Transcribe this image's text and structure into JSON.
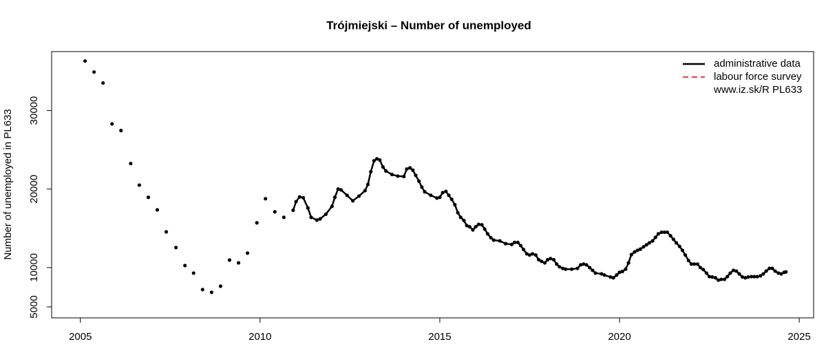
{
  "chart_data": {
    "type": "line",
    "title": "Trójmiejski – Number of unemployed",
    "y_label": "Number of unemployed in PL633",
    "xlim": [
      2004.2,
      2025.4
    ],
    "ylim": [
      3600,
      37500
    ],
    "xticks": [
      2005,
      2010,
      2015,
      2020,
      2025
    ],
    "yticks": [
      5000,
      10000,
      20000,
      30000
    ],
    "legend_position": "topright",
    "note": "www.iz.sk/R PL633",
    "series": [
      {
        "name": "administrative data",
        "color": "#000000",
        "dash": "solid",
        "x": [
          2005.13,
          null,
          2005.38,
          null,
          2005.63,
          null,
          2005.88,
          null,
          2006.13,
          null,
          2006.4,
          null,
          2006.64,
          null,
          2006.89,
          null,
          2007.14,
          null,
          2007.39,
          null,
          2007.66,
          null,
          2007.91,
          null,
          2008.15,
          null,
          2008.4,
          null,
          2008.65,
          null,
          2008.9,
          null,
          2009.15,
          null,
          2009.4,
          null,
          2009.65,
          null,
          2009.91,
          null,
          2010.15,
          null,
          2010.41,
          null,
          2010.66,
          null,
          2010.92,
          2011.0,
          2011.1,
          2011.2,
          2011.33,
          2011.42,
          2011.58,
          2011.67,
          2011.83,
          2012.0,
          2012.08,
          2012.17,
          2012.25,
          2012.42,
          2012.58,
          2012.75,
          2012.92,
          2013.0,
          2013.08,
          2013.17,
          2013.25,
          2013.33,
          2013.42,
          2013.5,
          2013.67,
          2013.83,
          2014.0,
          2014.08,
          2014.17,
          2014.25,
          2014.33,
          2014.42,
          2014.5,
          2014.58,
          2014.75,
          2014.92,
          2015.0,
          2015.08,
          2015.17,
          2015.25,
          2015.33,
          2015.42,
          2015.5,
          2015.58,
          2015.67,
          2015.75,
          2015.83,
          2015.92,
          2016.0,
          2016.08,
          2016.17,
          2016.25,
          2016.33,
          2016.42,
          2016.5,
          2016.67,
          2016.83,
          2017.0,
          2017.08,
          2017.17,
          2017.25,
          2017.33,
          2017.42,
          2017.5,
          2017.58,
          2017.67,
          2017.75,
          2017.83,
          2017.92,
          2018.0,
          2018.08,
          2018.17,
          2018.25,
          2018.33,
          2018.42,
          2018.5,
          2018.67,
          2018.83,
          2018.92,
          2019.0,
          2019.08,
          2019.17,
          2019.25,
          2019.33,
          2019.5,
          2019.58,
          2019.75,
          2019.83,
          2019.92,
          2020.0,
          2020.08,
          2020.17,
          2020.25,
          2020.33,
          2020.42,
          2020.5,
          2020.58,
          2020.67,
          2020.75,
          2020.83,
          2020.92,
          2021.0,
          2021.08,
          2021.17,
          2021.25,
          2021.33,
          2021.42,
          2021.5,
          2021.58,
          2021.67,
          2021.75,
          2021.83,
          2021.92,
          2022.0,
          2022.08,
          2022.17,
          2022.25,
          2022.33,
          2022.42,
          2022.5,
          2022.58,
          2022.67,
          2022.75,
          2022.83,
          2022.92,
          2023.0,
          2023.08,
          2023.17,
          2023.25,
          2023.33,
          2023.42,
          2023.5,
          2023.58,
          2023.67,
          2023.75,
          2023.83,
          2023.92,
          2024.0,
          2024.08,
          2024.17,
          2024.25,
          2024.33,
          2024.42,
          2024.5,
          2024.58,
          2024.63
        ],
        "values": [
          36300,
          null,
          34900,
          null,
          33500,
          null,
          28300,
          null,
          27450,
          null,
          23250,
          null,
          20500,
          null,
          18950,
          null,
          17350,
          null,
          14550,
          null,
          12550,
          null,
          10260,
          null,
          9300,
          null,
          7200,
          null,
          6850,
          null,
          7630,
          null,
          10960,
          null,
          10600,
          null,
          11840,
          null,
          15700,
          null,
          18770,
          null,
          17100,
          null,
          16400,
          null,
          17300,
          18400,
          19000,
          18900,
          17600,
          16400,
          16050,
          16200,
          16800,
          17800,
          18950,
          20000,
          19900,
          19200,
          18500,
          19100,
          19800,
          20600,
          22200,
          23600,
          23850,
          23700,
          22800,
          22300,
          21850,
          21650,
          21600,
          22550,
          22700,
          22400,
          21750,
          21000,
          20250,
          19650,
          19200,
          18850,
          18950,
          19550,
          19700,
          19200,
          18700,
          18000,
          17000,
          16400,
          16000,
          15350,
          15200,
          14800,
          15200,
          15500,
          15450,
          14900,
          14300,
          13800,
          13500,
          13400,
          13050,
          12950,
          13200,
          13200,
          12800,
          12300,
          11750,
          11600,
          11750,
          11600,
          11000,
          10800,
          10600,
          11000,
          11150,
          11000,
          10450,
          10100,
          9900,
          9800,
          9800,
          9900,
          10350,
          10450,
          10350,
          10000,
          9650,
          9300,
          9200,
          9050,
          8800,
          8700,
          9050,
          9400,
          9500,
          9800,
          10600,
          11650,
          12000,
          12200,
          12350,
          12650,
          12900,
          13150,
          13400,
          13850,
          14300,
          14500,
          14500,
          14500,
          14050,
          13600,
          13150,
          12700,
          12200,
          11600,
          10900,
          10450,
          10450,
          10450,
          10000,
          9750,
          9300,
          8850,
          8800,
          8700,
          8400,
          8500,
          8500,
          8850,
          9300,
          9650,
          9550,
          9200,
          8800,
          8700,
          8800,
          8850,
          8850,
          8850,
          8950,
          9200,
          9550,
          9900,
          9900,
          9550,
          9300,
          9200,
          9400,
          9450
        ]
      },
      {
        "name": "labour force survey",
        "color": "#df536b",
        "dash": "dashed",
        "x": [],
        "values": []
      }
    ]
  }
}
